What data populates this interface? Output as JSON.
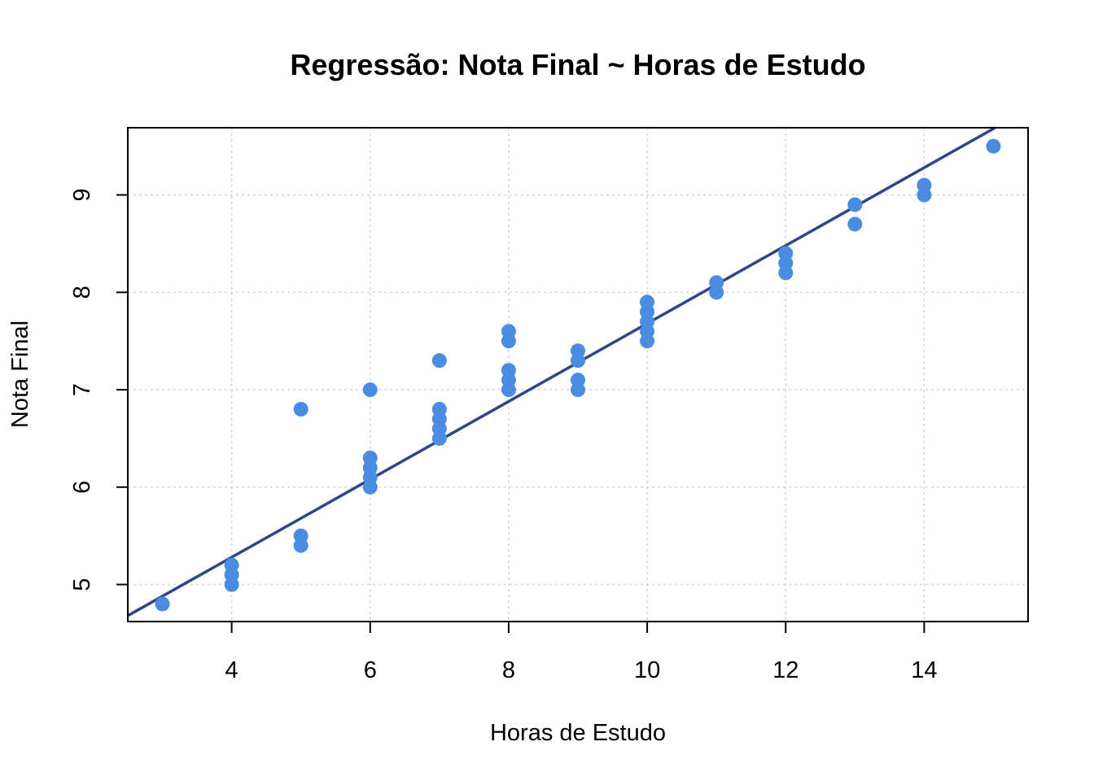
{
  "chart_data": {
    "type": "scatter",
    "title": "Regressão: Nota Final ~ Horas de Estudo",
    "xlabel": "Horas de Estudo",
    "ylabel": "Nota Final",
    "xlim": [
      2.5,
      15.5
    ],
    "ylim": [
      4.62,
      9.69
    ],
    "x_ticks": [
      4,
      6,
      8,
      10,
      12,
      14
    ],
    "y_ticks": [
      5,
      6,
      7,
      8,
      9
    ],
    "grid": true,
    "point_color": "#4a8de0",
    "line_color": "#2e4589",
    "points": [
      {
        "x": 3,
        "y": 4.8
      },
      {
        "x": 4,
        "y": 5.0
      },
      {
        "x": 4,
        "y": 5.1
      },
      {
        "x": 4,
        "y": 5.2
      },
      {
        "x": 5,
        "y": 5.4
      },
      {
        "x": 5,
        "y": 5.5
      },
      {
        "x": 5,
        "y": 6.8
      },
      {
        "x": 6,
        "y": 6.0
      },
      {
        "x": 6,
        "y": 6.1
      },
      {
        "x": 6,
        "y": 6.2
      },
      {
        "x": 6,
        "y": 6.3
      },
      {
        "x": 6,
        "y": 7.0
      },
      {
        "x": 7,
        "y": 6.5
      },
      {
        "x": 7,
        "y": 6.6
      },
      {
        "x": 7,
        "y": 6.7
      },
      {
        "x": 7,
        "y": 6.8
      },
      {
        "x": 7,
        "y": 7.3
      },
      {
        "x": 8,
        "y": 7.0
      },
      {
        "x": 8,
        "y": 7.1
      },
      {
        "x": 8,
        "y": 7.2
      },
      {
        "x": 8,
        "y": 7.5
      },
      {
        "x": 8,
        "y": 7.6
      },
      {
        "x": 9,
        "y": 7.0
      },
      {
        "x": 9,
        "y": 7.1
      },
      {
        "x": 9,
        "y": 7.3
      },
      {
        "x": 9,
        "y": 7.4
      },
      {
        "x": 10,
        "y": 7.5
      },
      {
        "x": 10,
        "y": 7.6
      },
      {
        "x": 10,
        "y": 7.7
      },
      {
        "x": 10,
        "y": 7.8
      },
      {
        "x": 10,
        "y": 7.9
      },
      {
        "x": 11,
        "y": 8.0
      },
      {
        "x": 11,
        "y": 8.1
      },
      {
        "x": 12,
        "y": 8.2
      },
      {
        "x": 12,
        "y": 8.3
      },
      {
        "x": 12,
        "y": 8.4
      },
      {
        "x": 13,
        "y": 8.7
      },
      {
        "x": 13,
        "y": 8.9
      },
      {
        "x": 14,
        "y": 9.0
      },
      {
        "x": 14,
        "y": 9.1
      },
      {
        "x": 15,
        "y": 9.5
      }
    ],
    "regression_line": {
      "intercept": 3.68,
      "slope": 0.4
    }
  }
}
